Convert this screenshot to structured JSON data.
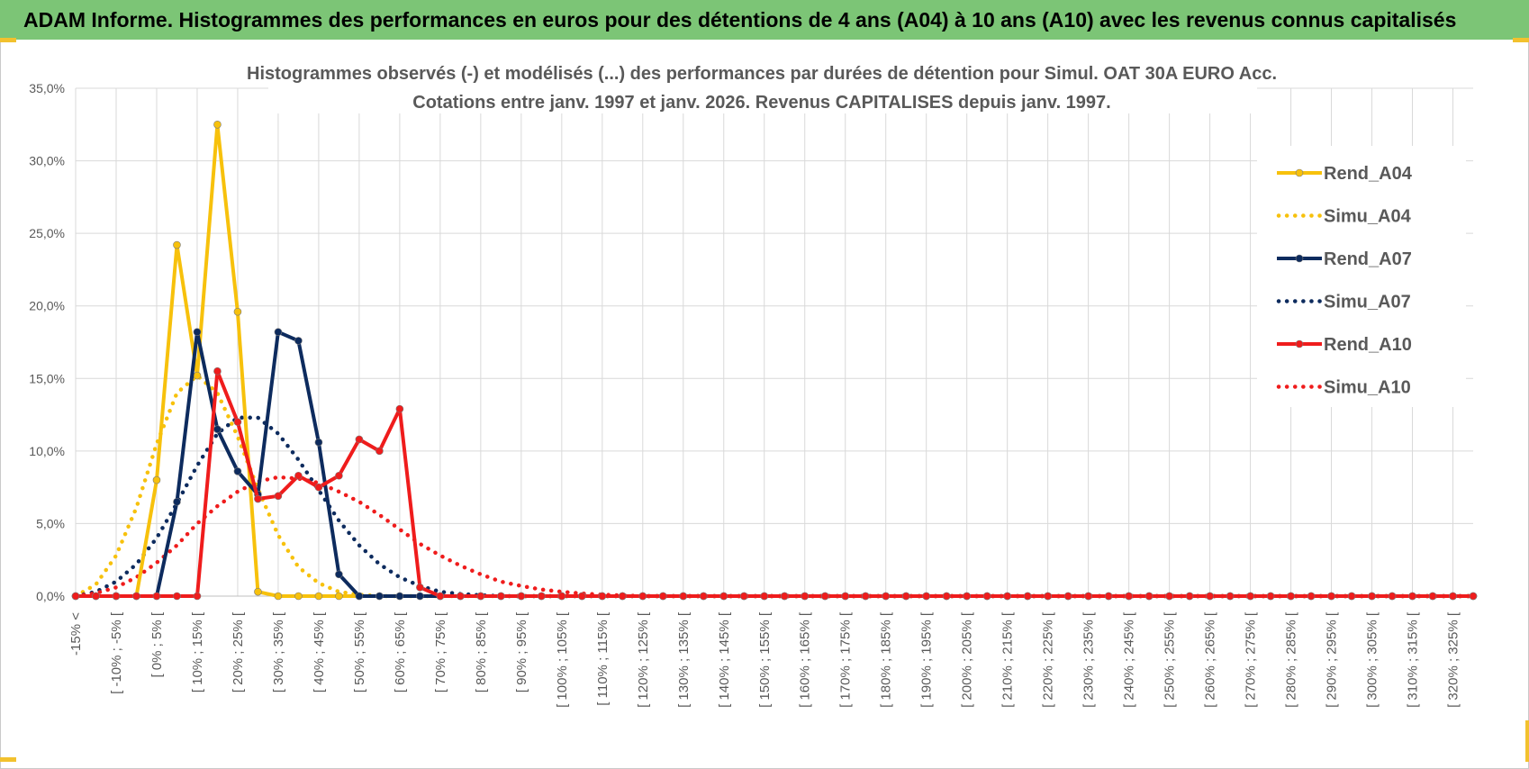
{
  "header": {
    "banner": "ADAM Informe. Histogrammes des performances en euros pour des détentions de 4 ans (A04) à 10 ans (A10) avec les revenus connus capitalisés",
    "banner_color": "#7cc576",
    "accent_color": "#f2c12e"
  },
  "chart_data": {
    "type": "line",
    "title_line1": "Histogrammes observés (-) et modélisés (...) des performances par durées de détention pour Simul. OAT 30A EURO Acc.",
    "title_line2": "Cotations entre janv. 1997 et janv. 2026. Revenus CAPITALISES depuis janv. 1997.",
    "ylim": [
      0,
      35
    ],
    "y_ticks": [
      "0,0%",
      "5,0%",
      "10,0%",
      "15,0%",
      "20,0%",
      "25,0%",
      "30,0%",
      "35,0%"
    ],
    "grid": true,
    "legend_position": "right",
    "x_tick_labels": [
      "-15% <",
      "[ -10% ; -5% [",
      "[ 0% ; 5% [",
      "[ 10% ; 15% [",
      "[ 20% ; 25% [",
      "[ 30% ; 35% [",
      "[ 40% ; 45% [",
      "[ 50% ; 55% [",
      "[ 60% ; 65% [",
      "[ 70% ; 75% [",
      "[ 80% ; 85% [",
      "[ 90% ; 95% [",
      "[ 100% ; 105% [",
      "[ 110% ; 115% [",
      "[ 120% ; 125% [",
      "[ 130% ; 135% [",
      "[ 140% ; 145% [",
      "[ 150% ; 155% [",
      "[ 160% ; 165% [",
      "[ 170% ; 175% [",
      "[ 180% ; 185% [",
      "[ 190% ; 195% [",
      "[ 200% ; 205% [",
      "[ 210% ; 215% [",
      "[ 220% ; 225% [",
      "[ 230% ; 235% [",
      "[ 240% ; 245% [",
      "[ 250% ; 255% [",
      "[ 260% ; 265% [",
      "[ 270% ; 275% [",
      "[ 280% ; 285% [",
      "[ 290% ; 295% [",
      "[ 300% ; 305% [",
      "[ 310% ; 315% [",
      "[ 320% ; 325% ["
    ],
    "series": [
      {
        "name": "Rend_A04",
        "style": "solid",
        "color": "#f7c10c",
        "values": [
          0,
          0,
          0,
          0,
          8.0,
          24.2,
          15.2,
          32.5,
          19.6,
          0.3,
          0,
          0,
          0,
          0,
          0,
          0,
          0,
          0,
          0,
          0,
          0,
          0,
          0,
          0,
          0,
          0,
          0,
          0,
          0,
          0,
          0,
          0,
          0,
          0,
          0,
          0,
          0,
          0,
          0,
          0,
          0,
          0,
          0,
          0,
          0,
          0,
          0,
          0,
          0,
          0,
          0,
          0,
          0,
          0,
          0,
          0,
          0,
          0,
          0,
          0,
          0,
          0,
          0,
          0,
          0,
          0,
          0,
          0,
          0,
          0
        ]
      },
      {
        "name": "Simu_A04",
        "style": "dotted",
        "color": "#f7c10c",
        "values": [
          0,
          0.8,
          2.8,
          6.1,
          10.5,
          14.0,
          15.2,
          14.0,
          11.0,
          7.4,
          4.2,
          2.0,
          0.9,
          0.3,
          0.1,
          0,
          0,
          0,
          0,
          0,
          0,
          0,
          0,
          0,
          0,
          0,
          0,
          0,
          0,
          0,
          0,
          0,
          0,
          0,
          0,
          0,
          0,
          0,
          0,
          0,
          0,
          0,
          0,
          0,
          0,
          0,
          0,
          0,
          0,
          0,
          0,
          0,
          0,
          0,
          0,
          0,
          0,
          0,
          0,
          0,
          0,
          0,
          0,
          0,
          0,
          0,
          0,
          0,
          0,
          0
        ]
      },
      {
        "name": "Rend_A07",
        "style": "solid",
        "color": "#0d2b5e",
        "values": [
          0,
          0,
          0,
          0,
          0,
          6.5,
          18.2,
          11.5,
          8.6,
          7.0,
          18.2,
          17.6,
          10.6,
          1.5,
          0,
          0,
          0,
          0,
          0,
          0,
          0,
          0,
          0,
          0,
          0,
          0,
          0,
          0,
          0,
          0,
          0,
          0,
          0,
          0,
          0,
          0,
          0,
          0,
          0,
          0,
          0,
          0,
          0,
          0,
          0,
          0,
          0,
          0,
          0,
          0,
          0,
          0,
          0,
          0,
          0,
          0,
          0,
          0,
          0,
          0,
          0,
          0,
          0,
          0,
          0,
          0,
          0,
          0,
          0,
          0
        ]
      },
      {
        "name": "Simu_A07",
        "style": "dotted",
        "color": "#0d2b5e",
        "values": [
          0,
          0.3,
          1.0,
          2.2,
          4.0,
          6.4,
          9.0,
          11.2,
          12.3,
          12.3,
          11.2,
          9.4,
          7.3,
          5.2,
          3.5,
          2.2,
          1.3,
          0.7,
          0.3,
          0.15,
          0.06,
          0,
          0,
          0,
          0,
          0,
          0,
          0,
          0,
          0,
          0,
          0,
          0,
          0,
          0,
          0,
          0,
          0,
          0,
          0,
          0,
          0,
          0,
          0,
          0,
          0,
          0,
          0,
          0,
          0,
          0,
          0,
          0,
          0,
          0,
          0,
          0,
          0,
          0,
          0,
          0,
          0,
          0,
          0,
          0,
          0,
          0,
          0,
          0,
          0
        ]
      },
      {
        "name": "Rend_A10",
        "style": "solid",
        "color": "#ef1c1c",
        "values": [
          0,
          0,
          0,
          0,
          0,
          0,
          0,
          15.5,
          12.0,
          6.7,
          6.9,
          8.3,
          7.5,
          8.3,
          10.8,
          10.0,
          12.9,
          0.6,
          0,
          0,
          0,
          0,
          0,
          0,
          0,
          0,
          0,
          0,
          0,
          0,
          0,
          0,
          0,
          0,
          0,
          0,
          0,
          0,
          0,
          0,
          0,
          0,
          0,
          0,
          0,
          0,
          0,
          0,
          0,
          0,
          0,
          0,
          0,
          0,
          0,
          0,
          0,
          0,
          0,
          0,
          0,
          0,
          0,
          0,
          0,
          0,
          0,
          0,
          0,
          0
        ]
      },
      {
        "name": "Simu_A10",
        "style": "dotted",
        "color": "#ef1c1c",
        "values": [
          0,
          0.2,
          0.6,
          1.3,
          2.3,
          3.5,
          5.0,
          6.2,
          7.2,
          7.9,
          8.2,
          8.1,
          7.8,
          7.2,
          6.5,
          5.6,
          4.6,
          3.6,
          2.8,
          2.1,
          1.5,
          1.0,
          0.7,
          0.45,
          0.3,
          0.18,
          0.1,
          0.05,
          0,
          0,
          0,
          0,
          0,
          0,
          0,
          0,
          0,
          0,
          0,
          0,
          0,
          0,
          0,
          0,
          0,
          0,
          0,
          0,
          0,
          0,
          0,
          0,
          0,
          0,
          0,
          0,
          0,
          0,
          0,
          0,
          0,
          0,
          0,
          0,
          0,
          0,
          0,
          0,
          0,
          0
        ]
      }
    ]
  }
}
